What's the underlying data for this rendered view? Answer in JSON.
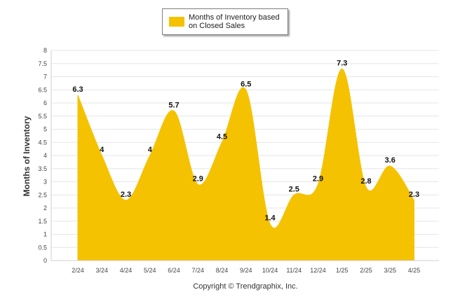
{
  "legend": {
    "label": "Months of Inventory based on Closed Sales",
    "color": "#f4c200"
  },
  "footer": {
    "copyright": "Copyright © Trendgraphix, Inc."
  },
  "chart_data": {
    "type": "area",
    "title": "",
    "ylabel": "Months of Inventory",
    "xlabel": "",
    "ylim": [
      0,
      8
    ],
    "ytick_step": 0.5,
    "grid": true,
    "legend_position": "top-center",
    "categories": [
      "2/24",
      "3/24",
      "4/24",
      "5/24",
      "6/24",
      "7/24",
      "8/24",
      "9/24",
      "10/24",
      "11/24",
      "12/24",
      "1/25",
      "2/25",
      "3/25",
      "4/25"
    ],
    "series": [
      {
        "name": "Months of Inventory based on Closed Sales",
        "values": [
          6.3,
          4,
          2.3,
          4,
          5.7,
          2.9,
          4.5,
          6.5,
          1.4,
          2.5,
          2.9,
          7.3,
          2.8,
          3.6,
          2.3
        ],
        "labels": [
          "6.3",
          "4",
          "2.3",
          "4",
          "5.7",
          "2.9",
          "4.5",
          "6.5",
          "1.4",
          "2.5",
          "2.9",
          "7.3",
          "2.8",
          "3.6",
          "2.3"
        ],
        "color": "#f4c200"
      }
    ]
  }
}
